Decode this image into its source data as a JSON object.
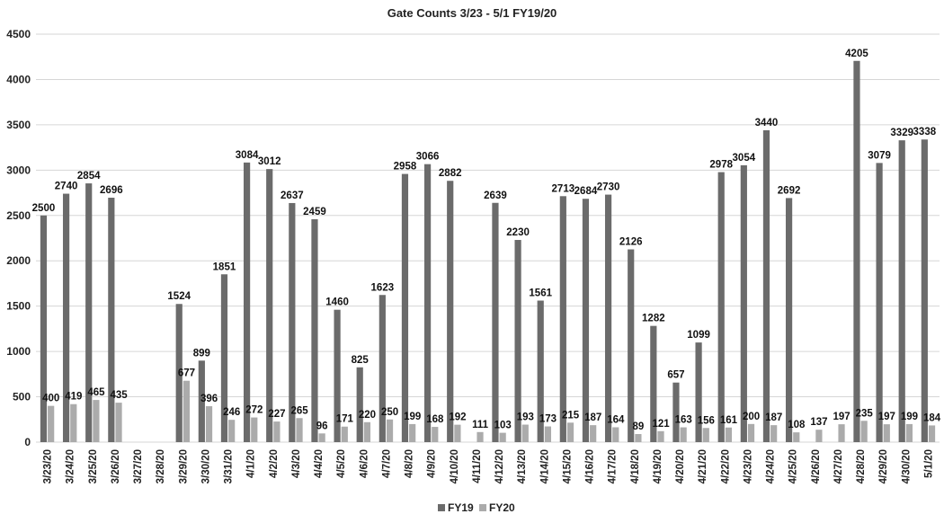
{
  "chart_data": {
    "type": "bar",
    "title": "Gate Counts 3/23 - 5/1 FY19/20",
    "xlabel": "",
    "ylabel": "",
    "ylim": [
      0,
      4500
    ],
    "yticks": [
      0,
      500,
      1000,
      1500,
      2000,
      2500,
      3000,
      3500,
      4000,
      4500
    ],
    "grid": true,
    "legend_position": "bottom",
    "categories": [
      "3/23/20",
      "3/24/20",
      "3/25/20",
      "3/26/20",
      "3/27/20",
      "3/28/20",
      "3/29/20",
      "3/30/20",
      "3/31/20",
      "4/1/20",
      "4/2/20",
      "4/3/20",
      "4/4/20",
      "4/5/20",
      "4/6/20",
      "4/7/20",
      "4/8/20",
      "4/9/20",
      "4/10/20",
      "4/11/20",
      "4/12/20",
      "4/13/20",
      "4/14/20",
      "4/15/20",
      "4/16/20",
      "4/17/20",
      "4/18/20",
      "4/19/20",
      "4/20/20",
      "4/21/20",
      "4/22/20",
      "4/23/20",
      "4/24/20",
      "4/25/20",
      "4/26/20",
      "4/27/20",
      "4/28/20",
      "4/29/20",
      "4/30/20",
      "5/1/20"
    ],
    "series": [
      {
        "name": "FY19",
        "color": "#6b6b6b",
        "values": [
          2500,
          2740,
          2854,
          2696,
          null,
          null,
          1524,
          899,
          1851,
          3084,
          3012,
          2637,
          2459,
          1460,
          825,
          1623,
          2958,
          3066,
          2882,
          null,
          2639,
          2230,
          1561,
          2713,
          2684,
          2730,
          2126,
          1282,
          657,
          1099,
          2978,
          3054,
          3440,
          2692,
          null,
          null,
          4205,
          3079,
          3329,
          3338
        ]
      },
      {
        "name": "FY20",
        "color": "#ababab",
        "values": [
          400,
          419,
          465,
          435,
          null,
          null,
          677,
          396,
          246,
          272,
          227,
          265,
          96,
          171,
          220,
          250,
          199,
          168,
          192,
          111,
          103,
          193,
          173,
          215,
          187,
          164,
          89,
          121,
          163,
          156,
          161,
          200,
          187,
          108,
          137,
          197,
          235,
          197,
          199,
          184
        ]
      }
    ]
  }
}
